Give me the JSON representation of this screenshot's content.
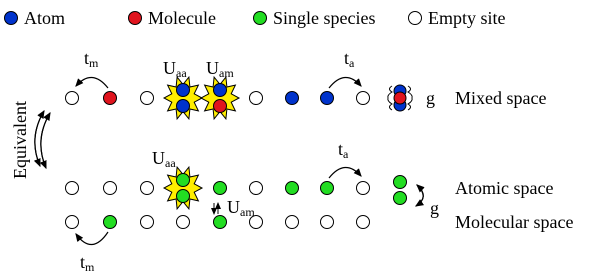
{
  "legend": {
    "atom": "Atom",
    "molecule": "Molecule",
    "single": "Single species",
    "empty": "Empty site"
  },
  "hopping": {
    "molecule": {
      "base": "t",
      "sub": "m"
    },
    "atom": {
      "base": "t",
      "sub": "a"
    }
  },
  "interaction": {
    "aa": {
      "base": "U",
      "sub": "aa"
    },
    "am": {
      "base": "U",
      "sub": "am"
    }
  },
  "conversion": "g",
  "equivalence": "Equivalent",
  "spaces": {
    "mixed": "Mixed space",
    "atomic": "Atomic space",
    "molecular": "Molecular space"
  }
}
